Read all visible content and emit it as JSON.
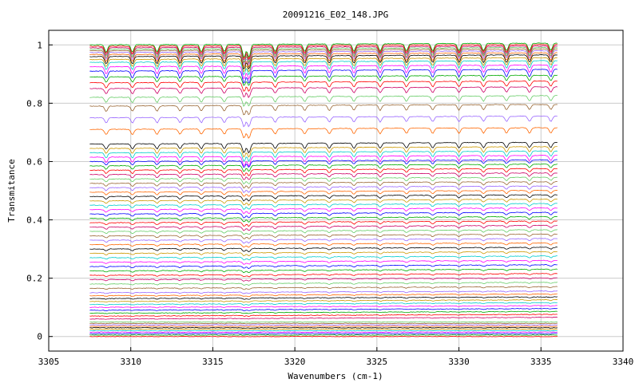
{
  "chart_data": {
    "type": "line",
    "title": "20091216_E02_148.JPG",
    "xlabel": "Wavenumbers (cm-1)",
    "ylabel": "Transmitance",
    "xlim": [
      3305,
      3340
    ],
    "ylim": [
      -0.05,
      1.05
    ],
    "x_ticks": [
      3305,
      3310,
      3315,
      3320,
      3325,
      3330,
      3335,
      3340
    ],
    "y_ticks": [
      0,
      0.2,
      0.4,
      0.6,
      0.8,
      1
    ],
    "y_tick_labels": [
      "0",
      "0.2",
      "0.4",
      "0.6",
      "0.8",
      "1"
    ],
    "grid": true,
    "x_range_of_data": [
      3307.5,
      3336
    ],
    "absorption_lines_cm1": [
      3308.5,
      3310.1,
      3311.6,
      3313.0,
      3314.3,
      3315.7,
      3316.9,
      3317.2,
      3318.8,
      3320.6,
      3322.1,
      3323.6,
      3325.2,
      3326.8,
      3328.4,
      3330.0,
      3331.5,
      3332.9,
      3334.3,
      3335.6
    ],
    "series_baselines": [
      0.0,
      0.005,
      0.01,
      0.015,
      0.02,
      0.025,
      0.03,
      0.035,
      0.04,
      0.045,
      0.05,
      0.06,
      0.07,
      0.08,
      0.09,
      0.1,
      0.11,
      0.12,
      0.13,
      0.14,
      0.15,
      0.165,
      0.18,
      0.195,
      0.21,
      0.225,
      0.24,
      0.255,
      0.27,
      0.285,
      0.3,
      0.315,
      0.33,
      0.345,
      0.36,
      0.375,
      0.39,
      0.405,
      0.42,
      0.435,
      0.45,
      0.465,
      0.48,
      0.495,
      0.51,
      0.525,
      0.54,
      0.555,
      0.57,
      0.585,
      0.6,
      0.615,
      0.63,
      0.645,
      0.66,
      0.71,
      0.75,
      0.79,
      0.82,
      0.85,
      0.87,
      0.89,
      0.91,
      0.925,
      0.94,
      0.95,
      0.96,
      0.967,
      0.974,
      0.98,
      0.985,
      0.99,
      0.995,
      1.0
    ],
    "colors": [
      "#ff0000",
      "#00aa00",
      "#0000ff",
      "#ff00ff",
      "#00cccc",
      "#cc9900",
      "#000000",
      "#ff6600",
      "#9966ff",
      "#996633",
      "#66cc66",
      "#cc0066"
    ]
  }
}
